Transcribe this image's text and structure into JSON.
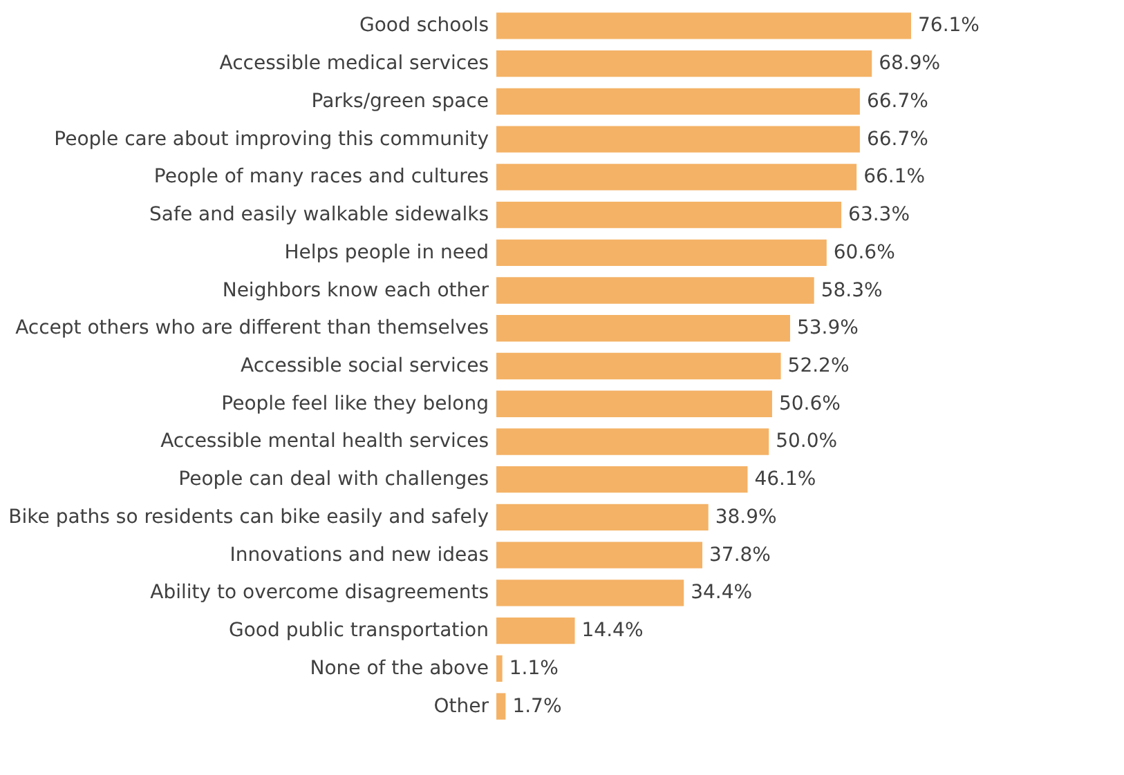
{
  "chart_data": {
    "type": "bar",
    "orientation": "horizontal",
    "color": "#f4b266",
    "grid": false,
    "categories": [
      "Good schools",
      "Accessible medical services",
      "Parks/green space",
      "People care about improving this community",
      "People of many races and cultures",
      "Safe and easily walkable sidewalks",
      "Helps people in need",
      "Neighbors know each other",
      "Accept others who are different than themselves",
      "Accessible social services",
      "People feel like they belong",
      "Accessible mental health services",
      "People can deal with challenges",
      "Bike paths so residents can bike easily and safely",
      "Innovations and new ideas",
      "Ability to overcome disagreements",
      "Good public transportation",
      "None of the above",
      "Other"
    ],
    "values": [
      76.1,
      68.9,
      66.7,
      66.7,
      66.1,
      63.3,
      60.6,
      58.3,
      53.9,
      52.2,
      50.6,
      50.0,
      46.1,
      38.9,
      37.8,
      34.4,
      14.4,
      1.1,
      1.7
    ],
    "value_labels": [
      "76.1%",
      "68.9%",
      "66.7%",
      "66.7%",
      "66.1%",
      "63.3%",
      "60.6%",
      "58.3%",
      "53.9%",
      "52.2%",
      "50.6%",
      "50.0%",
      "46.1%",
      "38.9%",
      "37.8%",
      "34.4%",
      "14.4%",
      "1.1%",
      "1.7%"
    ]
  }
}
